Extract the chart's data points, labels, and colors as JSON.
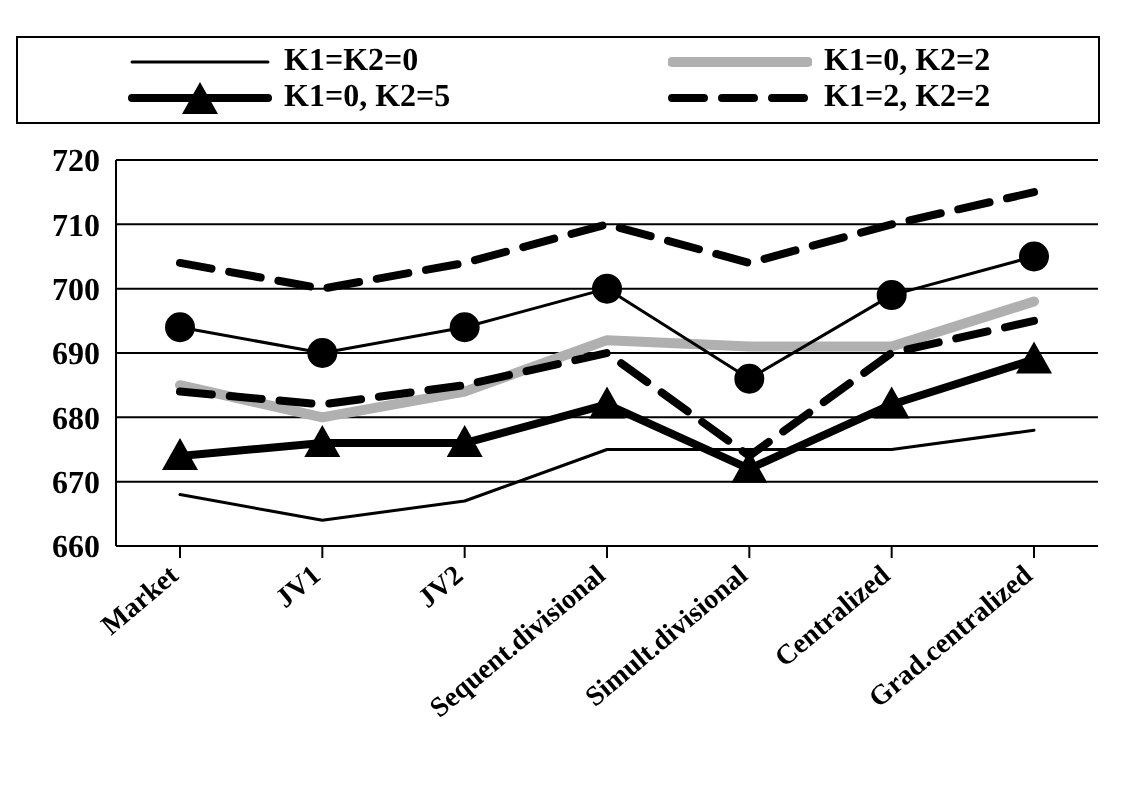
{
  "chart_data": {
    "type": "line",
    "categories": [
      "Market",
      "JV1",
      "JV2",
      "Sequent.divisional",
      "Simult.divisional",
      "Centralized",
      "Grad.centralized"
    ],
    "series": [
      {
        "name": "K1=K2=0",
        "color": "#000000",
        "line_style": "solid",
        "marker": "none",
        "values": [
          668,
          664,
          667,
          675,
          675,
          675,
          678
        ]
      },
      {
        "name": "K1=0, K2=2",
        "color": "#b0b0b0",
        "line_style": "solid",
        "marker": "none",
        "values": [
          685,
          680,
          684,
          692,
          691,
          691,
          698
        ]
      },
      {
        "name": "K1=0, K2=5",
        "color": "#000000",
        "line_style": "solid",
        "marker": "triangle",
        "values": [
          674,
          676,
          676,
          682,
          672,
          682,
          689
        ]
      },
      {
        "name": "K1=2, K2=2",
        "color": "#000000",
        "line_style": "dashed",
        "marker": "none",
        "values": [
          704,
          700,
          704,
          710,
          704,
          710,
          715
        ]
      },
      {
        "color": "#000000",
        "line_style": "solid",
        "marker": "circle",
        "values": [
          694,
          690,
          694,
          700,
          686,
          699,
          705
        ]
      },
      {
        "color": "#000000",
        "line_style": "dashed",
        "marker": "none",
        "values": [
          684,
          682,
          685,
          690,
          674,
          690,
          695
        ]
      }
    ],
    "ylim": [
      660,
      720
    ],
    "yticks": [
      660,
      670,
      680,
      690,
      700,
      710,
      720
    ],
    "grid": "y",
    "legend": "top"
  }
}
